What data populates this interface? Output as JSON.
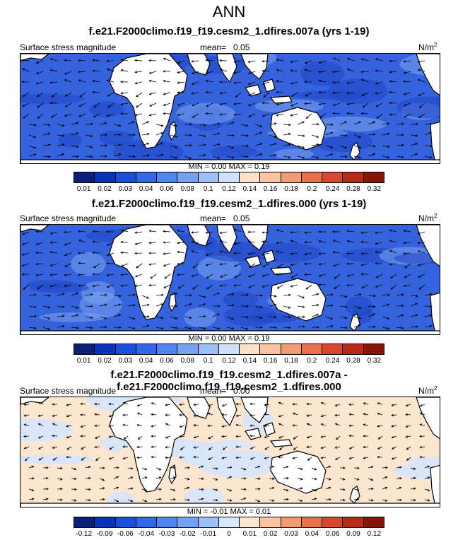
{
  "title": "ANN",
  "panels": [
    {
      "title": "f.e21.F2000climo.f19_f19.cesm2_1.dfires.007a (yrs 1-19)",
      "variable": "Surface stress magnitude",
      "mean_label": "mean=   0.05",
      "units": "N/m",
      "units_exp": "2",
      "minmax": "MIN =  0.00 MAX =  0.19",
      "colorbar": {
        "labels": [
          "0.01",
          "0.02",
          "0.03",
          "0.04",
          "0.06",
          "0.08",
          "0.1",
          "0.12",
          "0.14",
          "0.16",
          "0.18",
          "0.2",
          "0.24",
          "0.28",
          "0.32"
        ],
        "colors": [
          "#08207a",
          "#0a33b8",
          "#1a4fd8",
          "#2f6ae6",
          "#4f86ee",
          "#74a3f4",
          "#9dc0f8",
          "#cfe2fb",
          "#fde2c8",
          "#f9c39f",
          "#f39a72",
          "#e8714a",
          "#d6482c",
          "#b52b15",
          "#8a1406"
        ]
      },
      "map_colors": {
        "ocean": "#3563dd",
        "land": "#ffffff"
      }
    },
    {
      "title": "f.e21.F2000climo.f19_f19.cesm2_1.dfires.000 (yrs 1-19)",
      "variable": "Surface stress magnitude",
      "mean_label": "mean=   0.05",
      "units": "N/m",
      "units_exp": "2",
      "minmax": "MIN =  0.00 MAX =  0.19",
      "colorbar": {
        "labels": [
          "0.01",
          "0.02",
          "0.03",
          "0.04",
          "0.06",
          "0.08",
          "0.1",
          "0.12",
          "0.14",
          "0.16",
          "0.18",
          "0.2",
          "0.24",
          "0.28",
          "0.32"
        ],
        "colors": [
          "#08207a",
          "#0a33b8",
          "#1a4fd8",
          "#2f6ae6",
          "#4f86ee",
          "#74a3f4",
          "#9dc0f8",
          "#cfe2fb",
          "#fde2c8",
          "#f9c39f",
          "#f39a72",
          "#e8714a",
          "#d6482c",
          "#b52b15",
          "#8a1406"
        ]
      },
      "map_colors": {
        "ocean": "#3563dd",
        "land": "#ffffff"
      }
    },
    {
      "title": "f.e21.F2000climo.f19_f19.cesm2_1.dfires.007a - f.e21.F2000climo.f19_f19.cesm2_1.dfires.000",
      "variable": "Surface stress magnitude",
      "mean_label": "mean=   0.00",
      "units": "N/m",
      "units_exp": "2",
      "minmax": "MIN = -0.01 MAX =  0.01",
      "colorbar": {
        "labels": [
          "-0.12",
          "-0.09",
          "-0.06",
          "-0.04",
          "-0.03",
          "-0.02",
          "-0.01",
          "0",
          "0.01",
          "0.02",
          "0.03",
          "0.04",
          "0.06",
          "0.09",
          "0.12"
        ],
        "colors": [
          "#08207a",
          "#0a33b8",
          "#1a4fd8",
          "#2f6ae6",
          "#4f86ee",
          "#74a3f4",
          "#9dc0f8",
          "#d6e6fb",
          "#fde6cf",
          "#f9c39f",
          "#f39a72",
          "#e8714a",
          "#d6482c",
          "#b52b15",
          "#8a1406"
        ]
      },
      "map_colors": {
        "ocean": "#fde6cf",
        "ocean_alt": "#d6e6fb",
        "land": "#ffffff"
      }
    }
  ],
  "chart_data": {
    "type": "heatmap",
    "title": "ANN",
    "panels": [
      {
        "title": "f.e21.F2000climo.f19_f19.cesm2_1.dfires.007a (yrs 1-19)",
        "variable": "Surface stress magnitude",
        "mean": 0.05,
        "min": 0.0,
        "max": 0.19,
        "units": "N/m2",
        "levels": [
          0.01,
          0.02,
          0.03,
          0.04,
          0.06,
          0.08,
          0.1,
          0.12,
          0.14,
          0.16,
          0.18,
          0.2,
          0.24,
          0.28,
          0.32
        ]
      },
      {
        "title": "f.e21.F2000climo.f19_f19.cesm2_1.dfires.000 (yrs 1-19)",
        "variable": "Surface stress magnitude",
        "mean": 0.05,
        "min": 0.0,
        "max": 0.19,
        "units": "N/m2",
        "levels": [
          0.01,
          0.02,
          0.03,
          0.04,
          0.06,
          0.08,
          0.1,
          0.12,
          0.14,
          0.16,
          0.18,
          0.2,
          0.24,
          0.28,
          0.32
        ]
      },
      {
        "title": "f.e21.F2000climo.f19_f19.cesm2_1.dfires.007a - f.e21.F2000climo.f19_f19.cesm2_1.dfires.000",
        "variable": "Surface stress magnitude",
        "mean": 0.0,
        "min": -0.01,
        "max": 0.01,
        "units": "N/m2",
        "levels": [
          -0.12,
          -0.09,
          -0.06,
          -0.04,
          -0.03,
          -0.02,
          -0.01,
          0,
          0.01,
          0.02,
          0.03,
          0.04,
          0.06,
          0.09,
          0.12
        ]
      }
    ]
  }
}
